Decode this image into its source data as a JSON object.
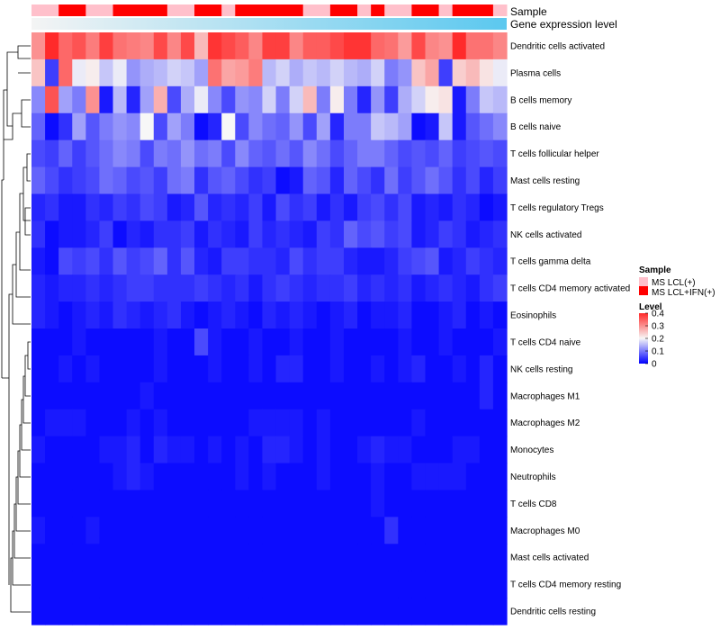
{
  "chart_data": {
    "type": "heatmap",
    "annotation_labels": {
      "sample": "Sample",
      "expression": "Gene expression level"
    },
    "legend": {
      "sample_title": "Sample",
      "sample_entries": [
        {
          "label": "MS LCL(+)",
          "color": "#ffc0cb"
        },
        {
          "label": "MS LCL+IFN(+)",
          "color": "#ff0000"
        }
      ],
      "level_title": "Level",
      "level_ticks": [
        "0.4",
        "0.3",
        "0.2",
        "0.1",
        "0"
      ],
      "level_tick_values": [
        0.4,
        0.3,
        0.2,
        0.1,
        0
      ],
      "range": [
        0,
        0.4
      ],
      "colors": {
        "low": "#0000ff",
        "mid": "#f7f7f7",
        "high": "#ff2a2a"
      },
      "placement": "right"
    },
    "sample_groups": [
      0,
      0,
      1,
      1,
      0,
      0,
      1,
      1,
      1,
      1,
      0,
      0,
      1,
      1,
      0,
      1,
      1,
      1,
      1,
      1,
      0,
      0,
      1,
      1,
      0,
      1,
      0,
      0,
      1,
      1,
      0,
      1,
      1,
      1,
      0
    ],
    "expression_gradient": {
      "from": "#f4f4f4",
      "to": "#5bc8ef"
    },
    "rows": [
      "Dendritic cells activated",
      "Plasma cells",
      "B cells memory",
      "B cells naive",
      "T cells follicular helper",
      "Mast cells resting",
      "T cells regulatory  Tregs",
      "NK cells activated",
      "T cells gamma delta",
      "T cells CD4 memory activated",
      "Eosinophils",
      "T cells CD4 naive",
      "NK cells resting",
      "Macrophages M1",
      "Macrophages M2",
      "Monocytes",
      "Neutrophils",
      "T cells CD8",
      "Macrophages M0",
      "Mast cells activated",
      "T cells CD4 memory resting",
      "Dendritic cells resting"
    ],
    "values": [
      [
        0.3,
        0.4,
        0.34,
        0.36,
        0.32,
        0.38,
        0.33,
        0.32,
        0.31,
        0.37,
        0.31,
        0.37,
        0.26,
        0.39,
        0.37,
        0.35,
        0.31,
        0.38,
        0.38,
        0.31,
        0.35,
        0.35,
        0.37,
        0.39,
        0.39,
        0.34,
        0.33,
        0.29,
        0.37,
        0.31,
        0.3,
        0.4,
        0.33,
        0.33,
        0.31
      ],
      [
        0.25,
        0.05,
        0.34,
        0.19,
        0.21,
        0.16,
        0.19,
        0.12,
        0.14,
        0.15,
        0.17,
        0.16,
        0.13,
        0.33,
        0.28,
        0.29,
        0.32,
        0.15,
        0.17,
        0.14,
        0.16,
        0.15,
        0.17,
        0.15,
        0.14,
        0.17,
        0.1,
        0.12,
        0.25,
        0.28,
        0.05,
        0.24,
        0.26,
        0.22,
        0.19
      ],
      [
        0.11,
        0.36,
        0.13,
        0.1,
        0.3,
        0.02,
        0.15,
        0.03,
        0.13,
        0.27,
        0.06,
        0.14,
        0.19,
        0.11,
        0.06,
        0.12,
        0.11,
        0.17,
        0.1,
        0.17,
        0.26,
        0.1,
        0.21,
        0.1,
        0.03,
        0.12,
        0.05,
        0.14,
        0.17,
        0.21,
        0.22,
        0.02,
        0.1,
        0.16,
        0.15
      ],
      [
        0.08,
        0.01,
        0.04,
        0.13,
        0.07,
        0.1,
        0.12,
        0.11,
        0.2,
        0.06,
        0.13,
        0.1,
        0.01,
        0.03,
        0.2,
        0.06,
        0.11,
        0.09,
        0.08,
        0.12,
        0.06,
        0.13,
        0.03,
        0.1,
        0.1,
        0.16,
        0.15,
        0.13,
        0.01,
        0.02,
        0.16,
        0.02,
        0.07,
        0.09,
        0.11
      ],
      [
        0.06,
        0.05,
        0.08,
        0.05,
        0.07,
        0.09,
        0.11,
        0.1,
        0.06,
        0.1,
        0.09,
        0.12,
        0.09,
        0.1,
        0.06,
        0.11,
        0.08,
        0.07,
        0.09,
        0.07,
        0.11,
        0.09,
        0.06,
        0.08,
        0.1,
        0.1,
        0.08,
        0.06,
        0.07,
        0.06,
        0.08,
        0.05,
        0.06,
        0.07,
        0.06
      ],
      [
        0.08,
        0.06,
        0.04,
        0.05,
        0.06,
        0.09,
        0.08,
        0.06,
        0.07,
        0.05,
        0.09,
        0.1,
        0.04,
        0.07,
        0.08,
        0.06,
        0.04,
        0.05,
        0.01,
        0.02,
        0.08,
        0.07,
        0.03,
        0.08,
        0.06,
        0.04,
        0.09,
        0.05,
        0.07,
        0.09,
        0.07,
        0.04,
        0.06,
        0.03,
        0.05
      ],
      [
        0.03,
        0.04,
        0.02,
        0.02,
        0.04,
        0.03,
        0.05,
        0.04,
        0.06,
        0.05,
        0.02,
        0.03,
        0.07,
        0.03,
        0.04,
        0.03,
        0.05,
        0.02,
        0.06,
        0.04,
        0.05,
        0.02,
        0.04,
        0.02,
        0.05,
        0.06,
        0.04,
        0.06,
        0.02,
        0.03,
        0.02,
        0.04,
        0.03,
        0.01,
        0.02
      ],
      [
        0.04,
        0.01,
        0.02,
        0.02,
        0.03,
        0.05,
        0.01,
        0.03,
        0.02,
        0.04,
        0.04,
        0.05,
        0.02,
        0.04,
        0.03,
        0.02,
        0.05,
        0.03,
        0.04,
        0.03,
        0.02,
        0.05,
        0.04,
        0.08,
        0.06,
        0.07,
        0.05,
        0.06,
        0.02,
        0.03,
        0.05,
        0.04,
        0.02,
        0.03,
        0.04
      ],
      [
        0.02,
        0.01,
        0.06,
        0.05,
        0.06,
        0.04,
        0.07,
        0.05,
        0.06,
        0.08,
        0.04,
        0.07,
        0.03,
        0.02,
        0.05,
        0.05,
        0.04,
        0.04,
        0.03,
        0.06,
        0.04,
        0.05,
        0.05,
        0.03,
        0.02,
        0.02,
        0.03,
        0.05,
        0.06,
        0.07,
        0.02,
        0.03,
        0.05,
        0.04,
        0.03
      ],
      [
        0.03,
        0.02,
        0.03,
        0.03,
        0.04,
        0.03,
        0.04,
        0.05,
        0.05,
        0.04,
        0.04,
        0.04,
        0.05,
        0.04,
        0.03,
        0.04,
        0.02,
        0.04,
        0.05,
        0.04,
        0.03,
        0.04,
        0.04,
        0.05,
        0.03,
        0.04,
        0.03,
        0.04,
        0.02,
        0.03,
        0.04,
        0.03,
        0.02,
        0.04,
        0.05
      ],
      [
        0.03,
        0.02,
        0.01,
        0.02,
        0.03,
        0.02,
        0.04,
        0.03,
        0.02,
        0.03,
        0.04,
        0.02,
        0.01,
        0.02,
        0.03,
        0.02,
        0.01,
        0.03,
        0.02,
        0.03,
        0.02,
        0.01,
        0.02,
        0.03,
        0.01,
        0.02,
        0.02,
        0.03,
        0.01,
        0.01,
        0.02,
        0.03,
        0.01,
        0.02,
        0.01
      ],
      [
        0.01,
        0.01,
        0.01,
        0.02,
        0.01,
        0.01,
        0.01,
        0.01,
        0.01,
        0.02,
        0.01,
        0.01,
        0.06,
        0.02,
        0.01,
        0.01,
        0.02,
        0.01,
        0.01,
        0.02,
        0.01,
        0.01,
        0.02,
        0.01,
        0.01,
        0.01,
        0.01,
        0.02,
        0.01,
        0.01,
        0.02,
        0.01,
        0.01,
        0.01,
        0.02
      ],
      [
        0.01,
        0.01,
        0.02,
        0.01,
        0.02,
        0.01,
        0.01,
        0.01,
        0.01,
        0.02,
        0.01,
        0.01,
        0.01,
        0.02,
        0.01,
        0.01,
        0.02,
        0.01,
        0.03,
        0.03,
        0.01,
        0.01,
        0.02,
        0.01,
        0.01,
        0.02,
        0.01,
        0.02,
        0.03,
        0.01,
        0.01,
        0.02,
        0.01,
        0.03,
        0.01
      ],
      [
        0.01,
        0.01,
        0.01,
        0.01,
        0.01,
        0.01,
        0.01,
        0.01,
        0.02,
        0.01,
        0.01,
        0.01,
        0.01,
        0.01,
        0.01,
        0.01,
        0.01,
        0.01,
        0.01,
        0.01,
        0.01,
        0.01,
        0.01,
        0.01,
        0.01,
        0.01,
        0.01,
        0.01,
        0.01,
        0.01,
        0.01,
        0.01,
        0.01,
        0.03,
        0.01
      ],
      [
        0.01,
        0.02,
        0.02,
        0.02,
        0.01,
        0.01,
        0.01,
        0.02,
        0.01,
        0.02,
        0.01,
        0.01,
        0.01,
        0.01,
        0.01,
        0.01,
        0.02,
        0.02,
        0.02,
        0.02,
        0.01,
        0.02,
        0.01,
        0.01,
        0.01,
        0.01,
        0.01,
        0.01,
        0.02,
        0.01,
        0.01,
        0.01,
        0.01,
        0.01,
        0.01
      ],
      [
        0.02,
        0.01,
        0.01,
        0.01,
        0.01,
        0.02,
        0.02,
        0.03,
        0.01,
        0.03,
        0.02,
        0.02,
        0.01,
        0.02,
        0.01,
        0.02,
        0.01,
        0.03,
        0.03,
        0.02,
        0.01,
        0.02,
        0.01,
        0.01,
        0.02,
        0.03,
        0.02,
        0.02,
        0.01,
        0.01,
        0.01,
        0.02,
        0.02,
        0.01,
        0.01
      ],
      [
        0.01,
        0.01,
        0.01,
        0.01,
        0.01,
        0.01,
        0.02,
        0.03,
        0.02,
        0.01,
        0.01,
        0.01,
        0.01,
        0.01,
        0.01,
        0.02,
        0.01,
        0.02,
        0.01,
        0.01,
        0.01,
        0.02,
        0.01,
        0.01,
        0.01,
        0.02,
        0.01,
        0.01,
        0.02,
        0.02,
        0.02,
        0.02,
        0.01,
        0.01,
        0.01
      ],
      [
        0.01,
        0.01,
        0.01,
        0.01,
        0.01,
        0.01,
        0.01,
        0.01,
        0.01,
        0.01,
        0.01,
        0.01,
        0.01,
        0.01,
        0.01,
        0.01,
        0.01,
        0.01,
        0.01,
        0.01,
        0.01,
        0.01,
        0.01,
        0.01,
        0.01,
        0.02,
        0.01,
        0.01,
        0.01,
        0.01,
        0.01,
        0.01,
        0.01,
        0.01,
        0.01
      ],
      [
        0.02,
        0.01,
        0.01,
        0.01,
        0.02,
        0.01,
        0.01,
        0.01,
        0.01,
        0.01,
        0.01,
        0.01,
        0.01,
        0.01,
        0.01,
        0.01,
        0.01,
        0.01,
        0.01,
        0.01,
        0.01,
        0.01,
        0.01,
        0.01,
        0.01,
        0.01,
        0.04,
        0.01,
        0.01,
        0.01,
        0.01,
        0.01,
        0.01,
        0.01,
        0.01
      ],
      [
        0.01,
        0.01,
        0.01,
        0.01,
        0.01,
        0.01,
        0.01,
        0.01,
        0.01,
        0.01,
        0.01,
        0.01,
        0.01,
        0.01,
        0.01,
        0.01,
        0.01,
        0.01,
        0.01,
        0.01,
        0.01,
        0.01,
        0.01,
        0.01,
        0.01,
        0.01,
        0.01,
        0.01,
        0.01,
        0.01,
        0.01,
        0.01,
        0.01,
        0.01,
        0.01
      ],
      [
        0.01,
        0.01,
        0.01,
        0.01,
        0.01,
        0.01,
        0.01,
        0.01,
        0.01,
        0.01,
        0.01,
        0.01,
        0.01,
        0.01,
        0.01,
        0.01,
        0.01,
        0.01,
        0.01,
        0.01,
        0.01,
        0.01,
        0.01,
        0.01,
        0.01,
        0.01,
        0.01,
        0.01,
        0.01,
        0.01,
        0.01,
        0.01,
        0.01,
        0.01,
        0.01
      ],
      [
        0.01,
        0.01,
        0.01,
        0.01,
        0.01,
        0.01,
        0.01,
        0.01,
        0.01,
        0.01,
        0.01,
        0.01,
        0.01,
        0.01,
        0.01,
        0.01,
        0.01,
        0.01,
        0.01,
        0.01,
        0.01,
        0.01,
        0.01,
        0.01,
        0.01,
        0.01,
        0.01,
        0.01,
        0.01,
        0.01,
        0.01,
        0.01,
        0.01,
        0.01,
        0.01
      ]
    ]
  }
}
